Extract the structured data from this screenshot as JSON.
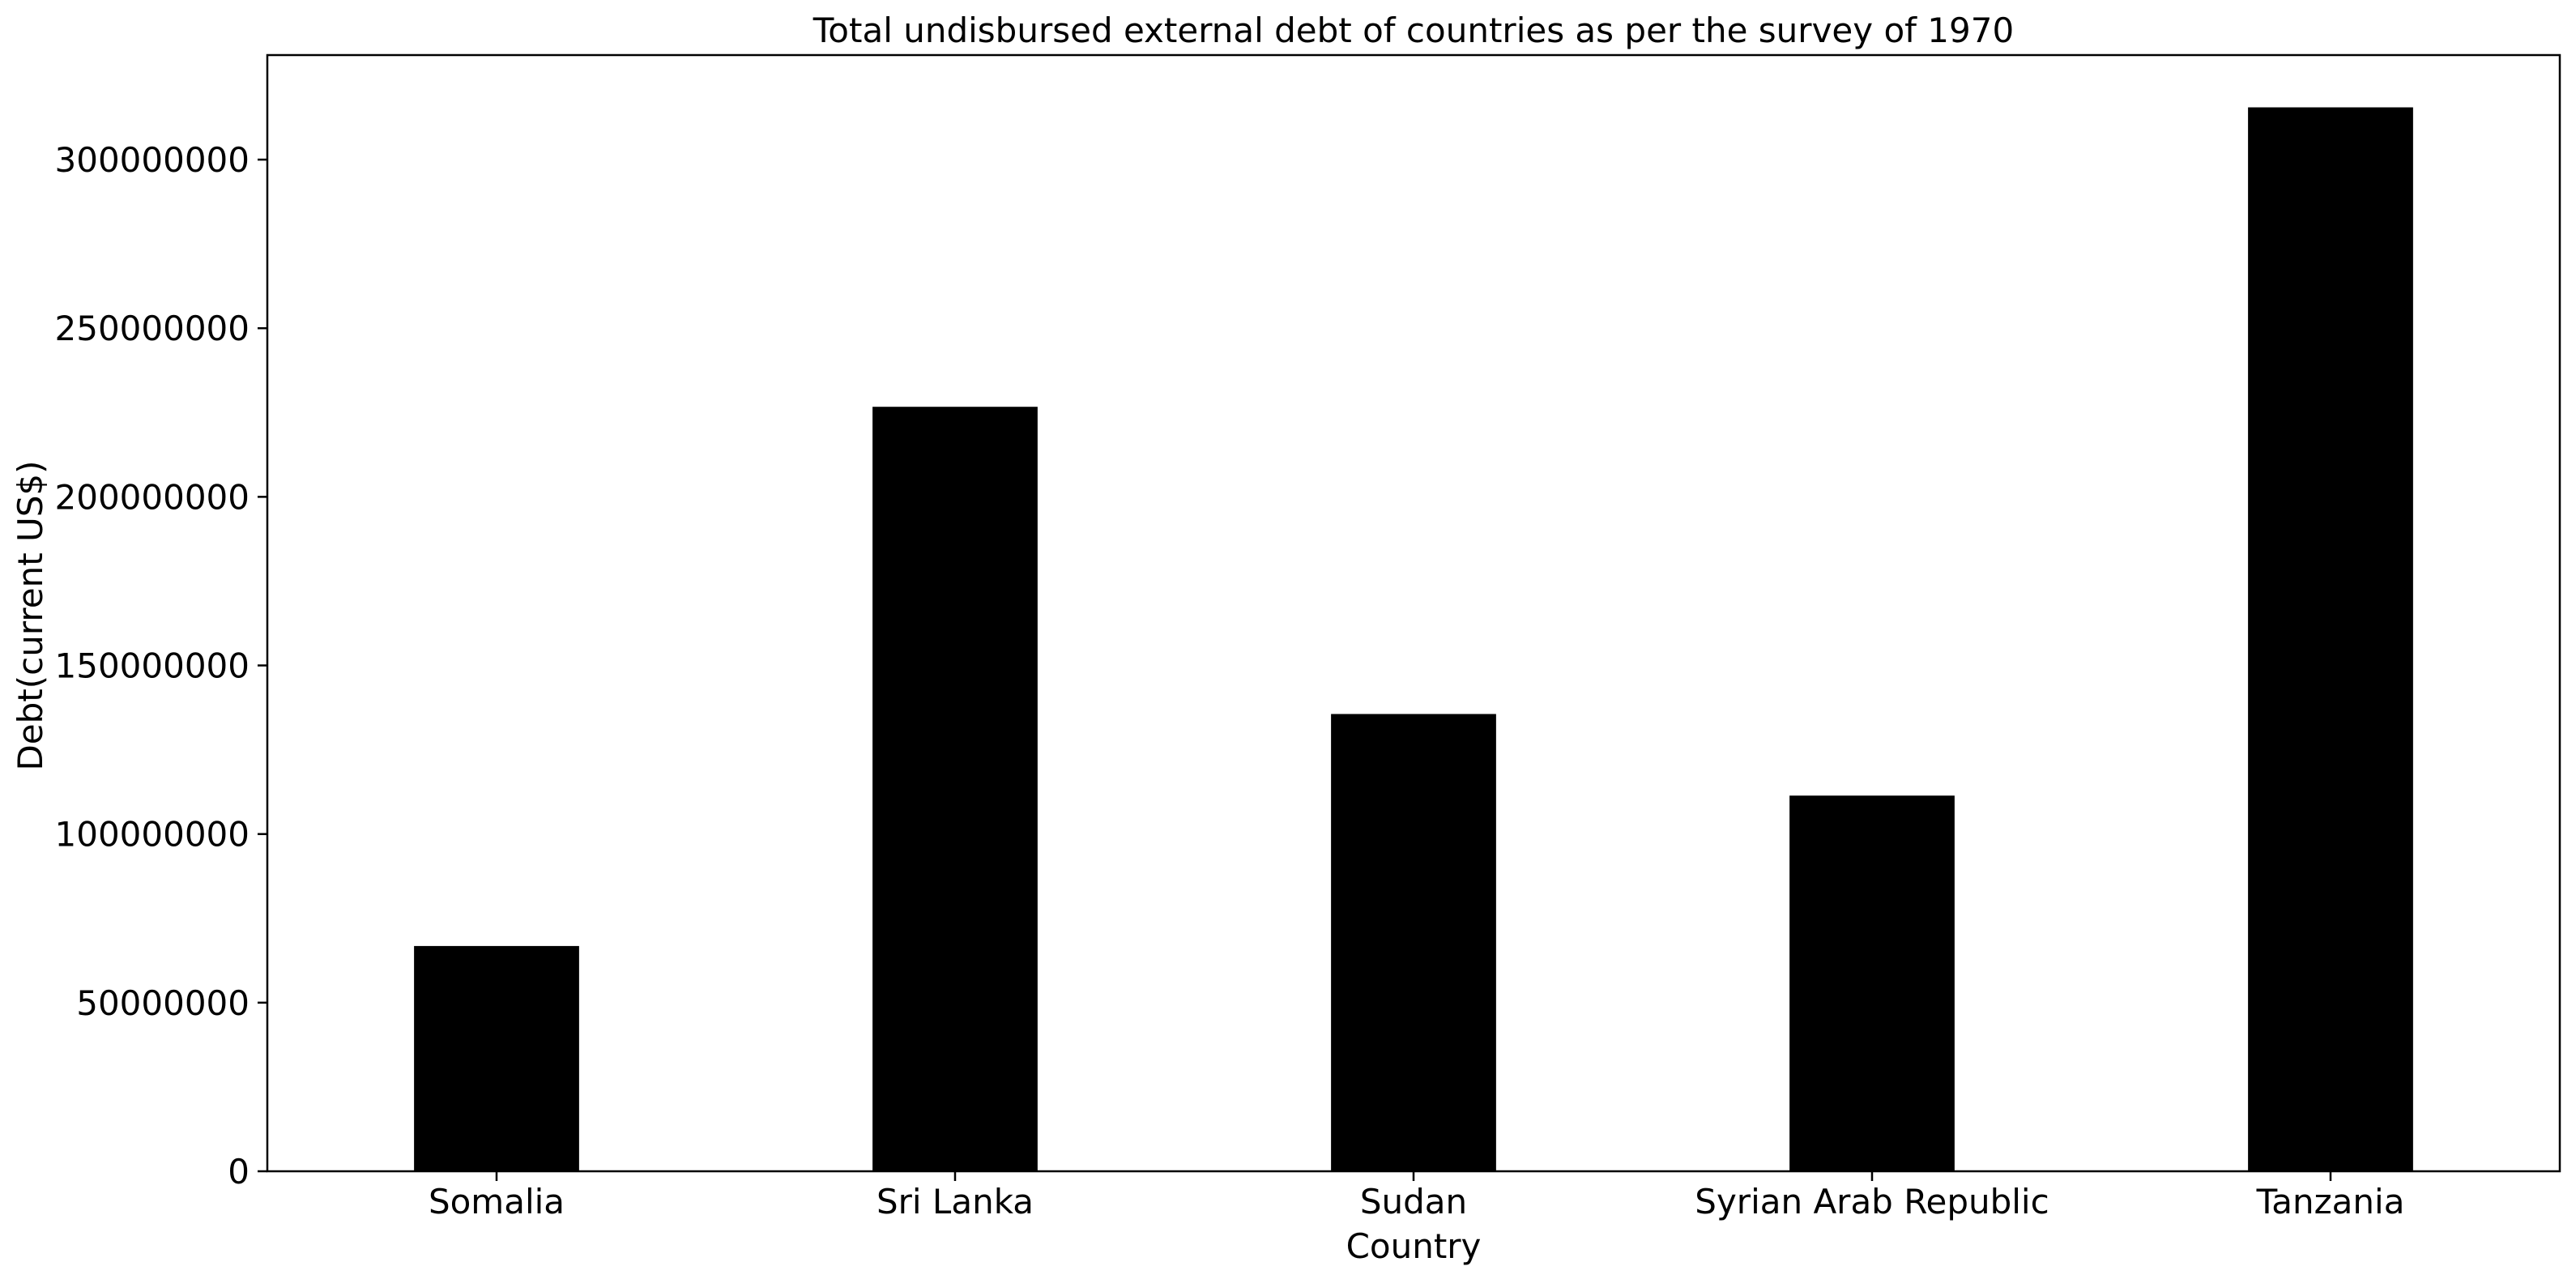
{
  "chart_data": {
    "type": "bar",
    "title": "Total undisbursed external debt of countries as per the survey of 1970",
    "xlabel": "Country",
    "ylabel": "Debt(current US$)",
    "categories": [
      "Somalia",
      "Sri Lanka",
      "Sudan",
      "Syrian Arab Republic",
      "Tanzania"
    ],
    "values": [
      66800000,
      226700000,
      135600000,
      111400000,
      315500000
    ],
    "ylim": [
      0,
      331000000
    ],
    "yticks": [
      0,
      50000000,
      100000000,
      150000000,
      200000000,
      250000000,
      300000000
    ],
    "ytick_labels": [
      "0",
      "50000000",
      "100000000",
      "150000000",
      "200000000",
      "250000000",
      "300000000"
    ],
    "bar_color": "#000000",
    "grid": false,
    "legend": "none"
  }
}
